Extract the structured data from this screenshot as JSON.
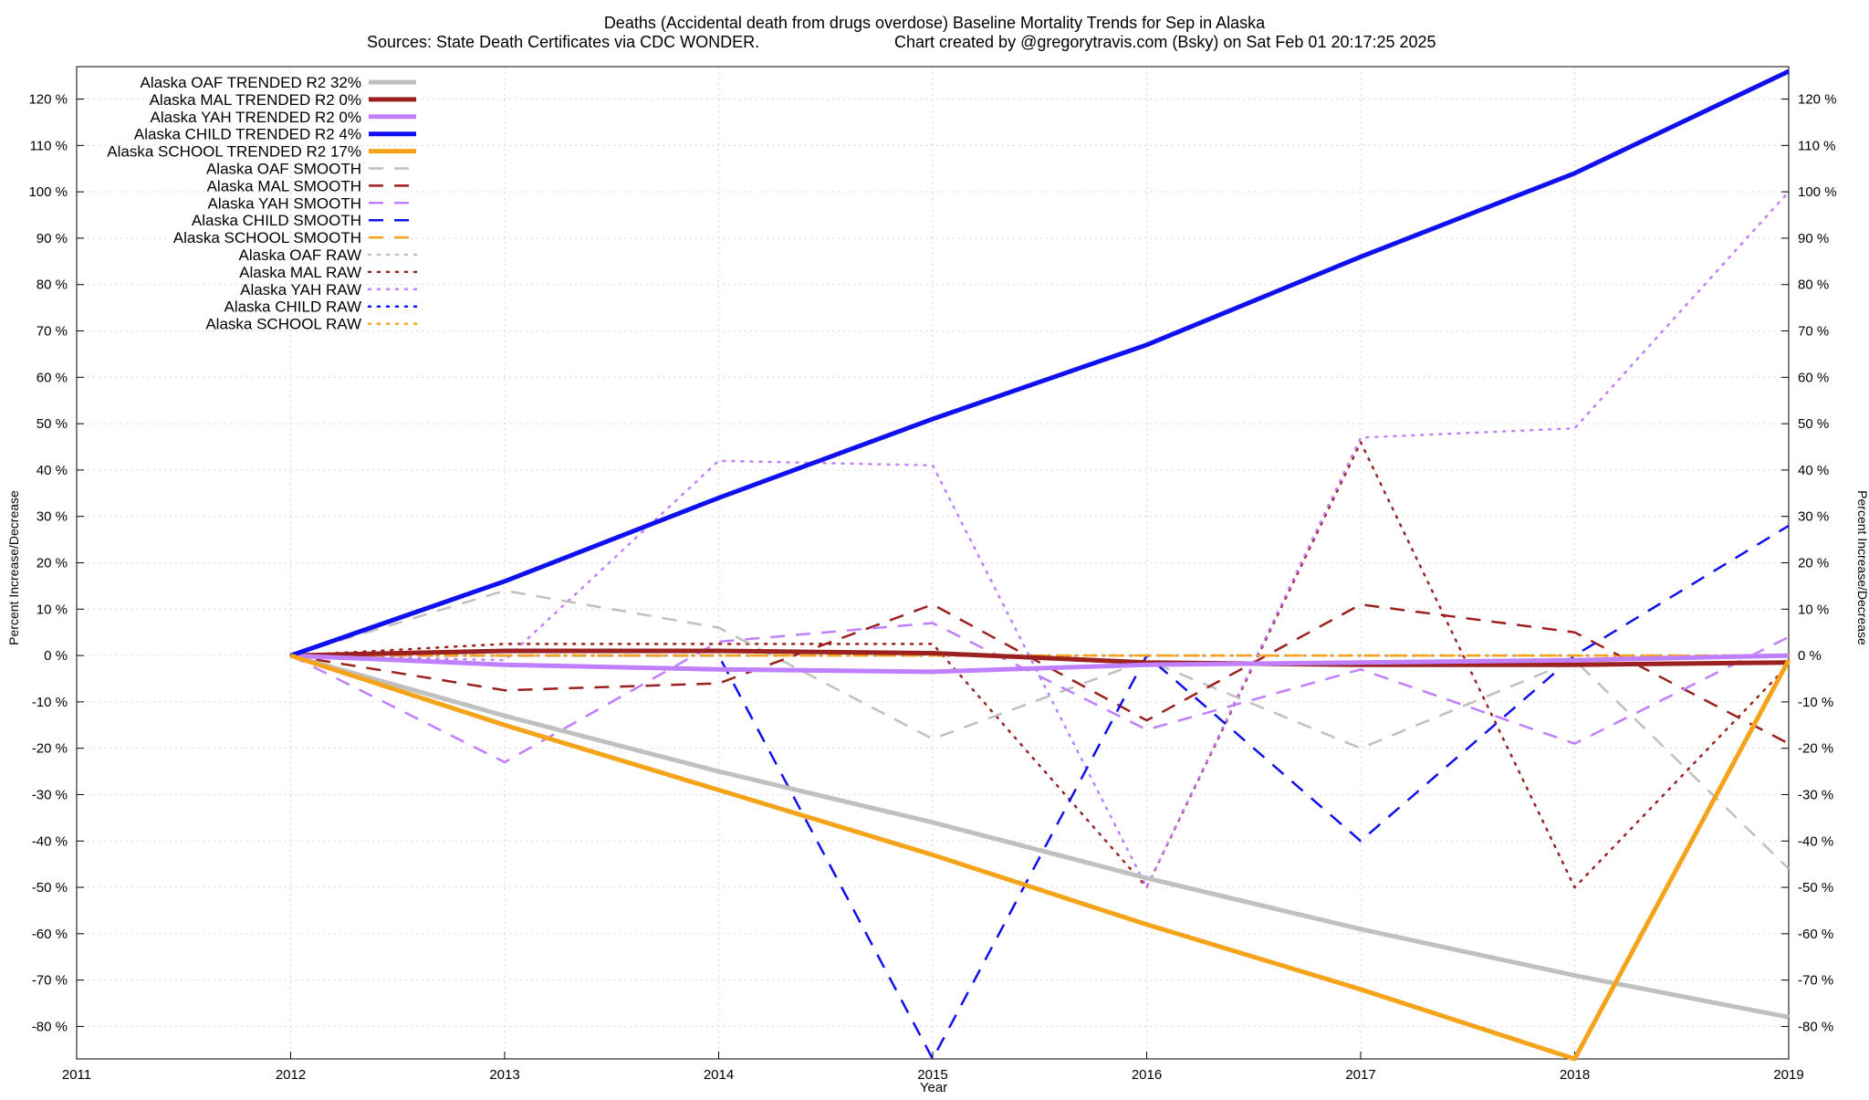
{
  "chart_data": {
    "type": "line",
    "title": "Deaths (Accidental death from drugs overdose)  Baseline Mortality Trends for Sep in Alaska",
    "subtitle_left": "Sources: State Death Certificates via CDC WONDER.",
    "subtitle_right": "Chart created by @gregorytravis.com (Bsky) on Sat Feb 01 20:17:25 2025",
    "xlabel": "Year",
    "ylabel_left": "Percent Increase/Decrease",
    "ylabel_right": "Percent Increase/Decrease",
    "xlim": [
      2011,
      2019
    ],
    "ylim": [
      -87,
      127
    ],
    "x_ticks": [
      "2011",
      "2012",
      "2013",
      "2014",
      "2015",
      "2016",
      "2017",
      "2018",
      "2019"
    ],
    "y_ticks": [
      "120 %",
      "110 %",
      "100 %",
      "90 %",
      "80 %",
      "70 %",
      "60 %",
      "50 %",
      "40 %",
      "30 %",
      "20 %",
      "10 %",
      "0 %",
      "-10 %",
      "-20 %",
      "-30 %",
      "-40 %",
      "-50 %",
      "-60 %",
      "-70 %",
      "-80 %"
    ],
    "y_tick_values": [
      120,
      110,
      100,
      90,
      80,
      70,
      60,
      50,
      40,
      30,
      20,
      10,
      0,
      -10,
      -20,
      -30,
      -40,
      -50,
      -60,
      -70,
      -80
    ],
    "grid": true,
    "legend_position": "top-left",
    "x": [
      2012,
      2013,
      2014,
      2015,
      2016,
      2017,
      2018,
      2019
    ],
    "series": [
      {
        "name": "Alaska OAF TRENDED R2  32%",
        "color": "#c0c0c0",
        "style": "solid",
        "values": [
          0,
          -13,
          -25,
          -36,
          -48,
          -59,
          -69,
          -78
        ]
      },
      {
        "name": "Alaska MAL TRENDED R2   0%",
        "color": "#9b2020",
        "style": "solid",
        "values": [
          0,
          1,
          1,
          0.5,
          -1.5,
          -2,
          -2,
          -1.5
        ]
      },
      {
        "name": "Alaska YAH TRENDED R2   0%",
        "color": "#bf7fff",
        "style": "solid",
        "values": [
          0,
          -2,
          -3,
          -3.5,
          -2,
          -1.5,
          -1,
          0
        ]
      },
      {
        "name": "Alaska CHILD TRENDED R2   4%",
        "color": "#1010ee",
        "style": "solid",
        "values": [
          0,
          16,
          34,
          51,
          67,
          86,
          104,
          126
        ]
      },
      {
        "name": "Alaska SCHOOL TRENDED R2  17%",
        "color": "#f5a31a",
        "style": "solid",
        "values": [
          0,
          -15,
          -29,
          -43,
          -58,
          -72,
          -87,
          -1
        ]
      },
      {
        "name": "Alaska OAF SMOOTH",
        "color": "#c0c0c0",
        "style": "dashed",
        "values": [
          0,
          14,
          6,
          -18,
          -1,
          -20,
          -1,
          -46
        ]
      },
      {
        "name": "Alaska MAL SMOOTH",
        "color": "#9b2020",
        "style": "dashed",
        "values": [
          0,
          -7.5,
          -6,
          11,
          -14,
          11,
          5,
          -19
        ]
      },
      {
        "name": "Alaska YAH SMOOTH",
        "color": "#bf7fff",
        "style": "dashed",
        "values": [
          0,
          -23,
          3,
          7,
          -16,
          -3,
          -19,
          4
        ]
      },
      {
        "name": "Alaska CHILD SMOOTH",
        "color": "#1010ee",
        "style": "dashed",
        "values": [
          0,
          0,
          0,
          -87,
          0,
          -40,
          0,
          28
        ]
      },
      {
        "name": "Alaska SCHOOL SMOOTH",
        "color": "#f5a31a",
        "style": "dashed",
        "values": [
          0,
          0,
          0,
          0,
          0,
          0,
          0,
          0
        ]
      },
      {
        "name": "Alaska OAF RAW",
        "color": "#c0c0c0",
        "style": "dotted",
        "values": [
          0,
          0,
          0,
          0,
          0,
          0,
          0,
          0
        ]
      },
      {
        "name": "Alaska MAL RAW",
        "color": "#9b2020",
        "style": "dotted",
        "values": [
          0,
          2.5,
          2.5,
          2.5,
          -50,
          46,
          -50,
          -2
        ]
      },
      {
        "name": "Alaska YAH RAW",
        "color": "#bf7fff",
        "style": "dotted",
        "values": [
          0,
          -1,
          42,
          41,
          -50,
          47,
          49,
          100
        ]
      },
      {
        "name": "Alaska CHILD RAW",
        "color": "#1010ee",
        "style": "dotted",
        "values": [
          0,
          0,
          0,
          0,
          0,
          0,
          0,
          0
        ]
      },
      {
        "name": "Alaska SCHOOL RAW",
        "color": "#f5a31a",
        "style": "dotted",
        "values": [
          0,
          0,
          0,
          0,
          0,
          0,
          0,
          0
        ]
      }
    ]
  }
}
